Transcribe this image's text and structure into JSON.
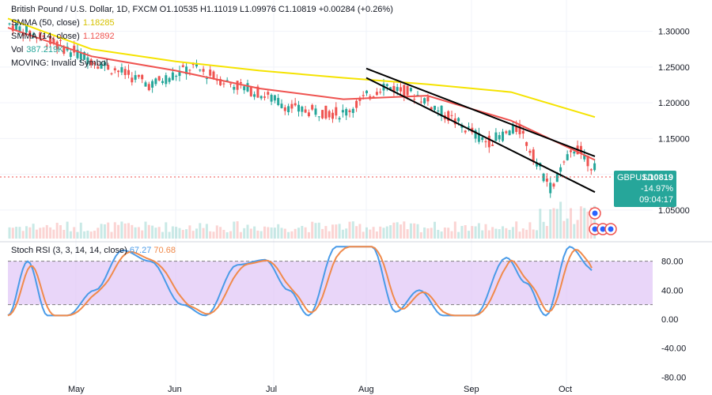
{
  "header": {
    "ohlc_line": "British Pound / U.S. Dollar, 1D, FXCM  O1.10535  H1.11019  L1.09976  C1.10819  +0.00284 (+0.26%)",
    "sma50_label": "SMMA (50, close)",
    "sma50_value": "1.18285",
    "sma14_label": "SMMA (14, close)",
    "sma14_value": "1.12892",
    "vol_label": "Vol",
    "vol_value": "387.219K",
    "moving_label": "MOVING: Invalid Symbol"
  },
  "rsi_legend": {
    "label": "Stoch RSI (3, 3, 14, 14, close)",
    "k": "67.27",
    "d": "70.68"
  },
  "price_tag": {
    "symbol": "GBPUSD",
    "price": "1.10819",
    "change": "-14.97%",
    "countdown": "09:04:17"
  },
  "colors": {
    "up": "#26a69a",
    "down": "#ef5350",
    "sma50": "#f5e300",
    "sma14": "#ef5350",
    "k": "#4a9be8",
    "d": "#f08a4b",
    "band": "#e1c8f7"
  },
  "chart_data": {
    "type": "candlestick",
    "price_axis": {
      "ticks": [
        1.3,
        1.25,
        1.2,
        1.15,
        1.05
      ],
      "tick_labels": [
        "1.30000",
        "1.25000",
        "1.20000",
        "1.15000",
        "1.05000"
      ],
      "range": [
        1.01,
        1.335
      ]
    },
    "x_labels": [
      "May",
      "Jun",
      "Jul",
      "Aug",
      "Sep",
      "Oct"
    ],
    "candle_anchors": [
      {
        "x": "Apr",
        "close": 1.31
      },
      {
        "x": "May",
        "close": 1.255
      },
      {
        "x": "May",
        "close": 1.225
      },
      {
        "x": "Jun",
        "close": 1.25
      },
      {
        "x": "Jun",
        "close": 1.23
      },
      {
        "x": "Jun",
        "close": 1.215
      },
      {
        "x": "Jul",
        "close": 1.19
      },
      {
        "x": "Jul",
        "close": 1.185
      },
      {
        "x": "Aug",
        "close": 1.225
      },
      {
        "x": "Aug",
        "close": 1.21
      },
      {
        "x": "Aug",
        "close": 1.175
      },
      {
        "x": "Sep",
        "close": 1.145
      },
      {
        "x": "Sep",
        "close": 1.165
      },
      {
        "x": "Sep",
        "close": 1.08
      },
      {
        "x": "Oct",
        "close": 1.14
      },
      {
        "x": "Oct",
        "close": 1.108
      }
    ],
    "sma50": [
      1.318,
      1.275,
      1.258,
      1.245,
      1.235,
      1.226,
      1.215,
      1.18
    ],
    "sma14": [
      1.305,
      1.265,
      1.245,
      1.22,
      1.205,
      1.21,
      1.175,
      1.12
    ],
    "channel": {
      "upper": [
        [
          1.248,
          "Aug"
        ],
        [
          1.125,
          "Oct"
        ]
      ],
      "lower": [
        [
          1.235,
          "Aug"
        ],
        [
          1.075,
          "Oct"
        ]
      ]
    },
    "stoch_rsi": {
      "axis_ticks": [
        80,
        40,
        0,
        -40,
        -80
      ],
      "tick_labels": [
        "80.00",
        "40.00",
        "0.00",
        "-40.00",
        "-80.00"
      ],
      "band": [
        20,
        80
      ],
      "last_k": 67.27,
      "last_d": 70.68
    }
  }
}
